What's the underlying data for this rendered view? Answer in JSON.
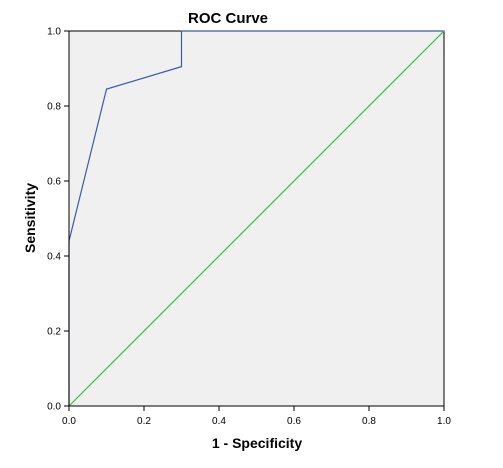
{
  "chart_data": {
    "type": "line",
    "title": "ROC Curve",
    "xlabel": "1 - Specificity",
    "ylabel": "Sensitivity",
    "xlim": [
      0.0,
      1.0
    ],
    "ylim": [
      0.0,
      1.0
    ],
    "x_ticks": [
      "0.0",
      "0.2",
      "0.4",
      "0.6",
      "0.8",
      "1.0"
    ],
    "y_ticks": [
      "0.0",
      "0.2",
      "0.4",
      "0.6",
      "0.8",
      "1.0"
    ],
    "grid": false,
    "background_color": "#f0f0f0",
    "series": [
      {
        "color": "#3a5ba6",
        "x": [
          0.0,
          0.0,
          0.1,
          0.3,
          0.3,
          1.0
        ],
        "y": [
          0.0,
          0.44,
          0.845,
          0.905,
          1.0,
          1.0
        ]
      },
      {
        "color": "#3cbf3c",
        "x": [
          0.0,
          1.0
        ],
        "y": [
          0.0,
          1.0
        ]
      }
    ]
  }
}
